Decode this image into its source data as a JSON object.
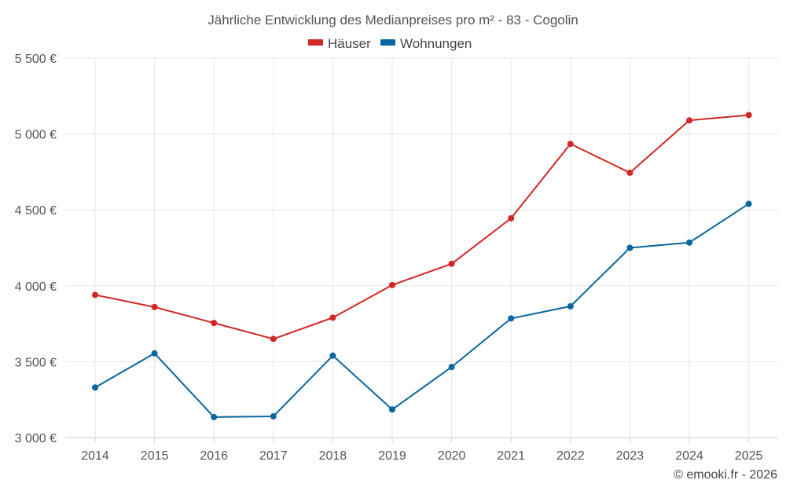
{
  "chart_data": {
    "type": "line",
    "title": "Jährliche Entwicklung des Medianpreises pro m² - 83 - Cogolin",
    "categories": [
      "2014",
      "2015",
      "2016",
      "2017",
      "2018",
      "2019",
      "2020",
      "2021",
      "2022",
      "2023",
      "2024",
      "2025"
    ],
    "series": [
      {
        "name": "Häuser",
        "color": "#d32626",
        "values": [
          3940,
          3860,
          3755,
          3650,
          3790,
          4005,
          4145,
          4445,
          4935,
          4745,
          5090,
          5125
        ]
      },
      {
        "name": "Wohnungen",
        "color": "#0a66a0",
        "values": [
          3330,
          3555,
          3135,
          3140,
          3540,
          3185,
          3465,
          3785,
          3865,
          4250,
          4285,
          4540
        ]
      }
    ],
    "ylim": [
      3000,
      5500
    ],
    "yticks": [
      3000,
      3500,
      4000,
      4500,
      5000,
      5500
    ],
    "ytick_labels": [
      "3 000 €",
      "3 500 €",
      "4 000 €",
      "4 500 €",
      "5 000 €",
      "5 500 €"
    ],
    "xlabel": "",
    "ylabel": "",
    "grid": true,
    "legend_position": "top-center"
  },
  "credit": "© emooki.fr - 2026"
}
